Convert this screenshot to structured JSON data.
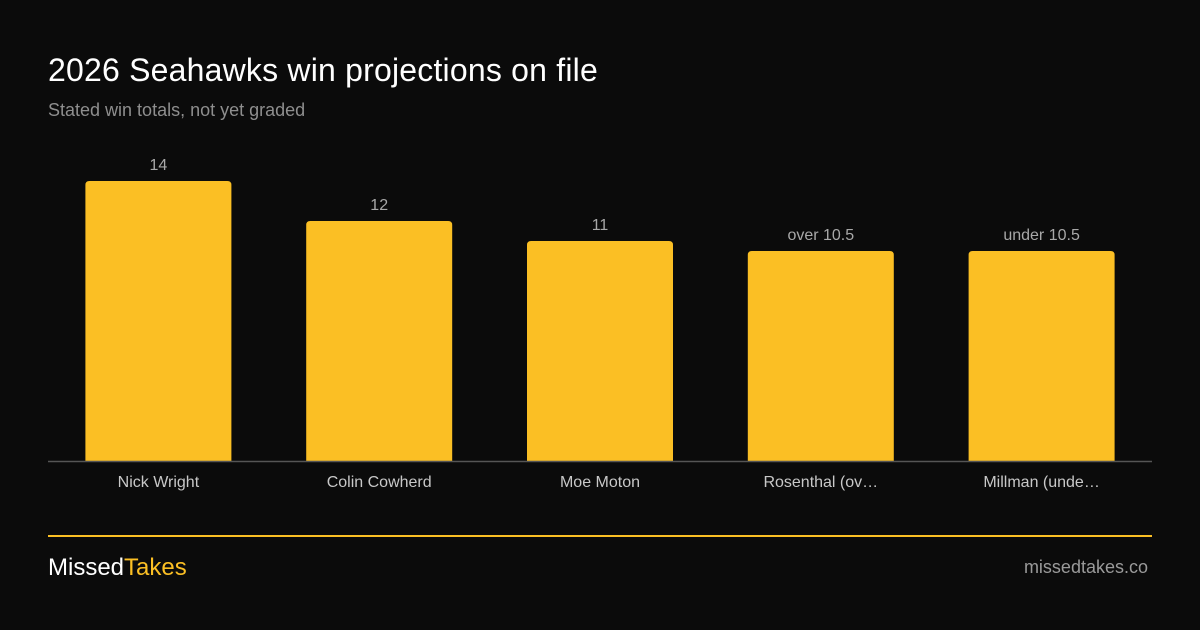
{
  "header": {
    "title": "2026 Seahawks win projections on file",
    "subtitle": "Stated win totals, not yet graded"
  },
  "colors": {
    "background": "#0b0b0b",
    "bar": "#fbbf24",
    "accent": "#fbbf24",
    "label": "#c8c8c8",
    "value_label": "#a8a8a8",
    "axis": "#555555"
  },
  "chart_data": {
    "type": "bar",
    "categories": [
      "Nick Wright",
      "Colin Cowherd",
      "Moe Moton",
      "Rosenthal (ov…",
      "Millman (unde…"
    ],
    "values": [
      14,
      12,
      11,
      10.5,
      10.5
    ],
    "value_labels": [
      "14",
      "12",
      "11",
      "over 10.5",
      "under 10.5"
    ],
    "ylim": [
      0,
      14
    ],
    "grid": false,
    "legend": "none"
  },
  "footer": {
    "brand_part1": "Missed",
    "brand_part2": "Takes",
    "site": "missedtakes.co"
  }
}
